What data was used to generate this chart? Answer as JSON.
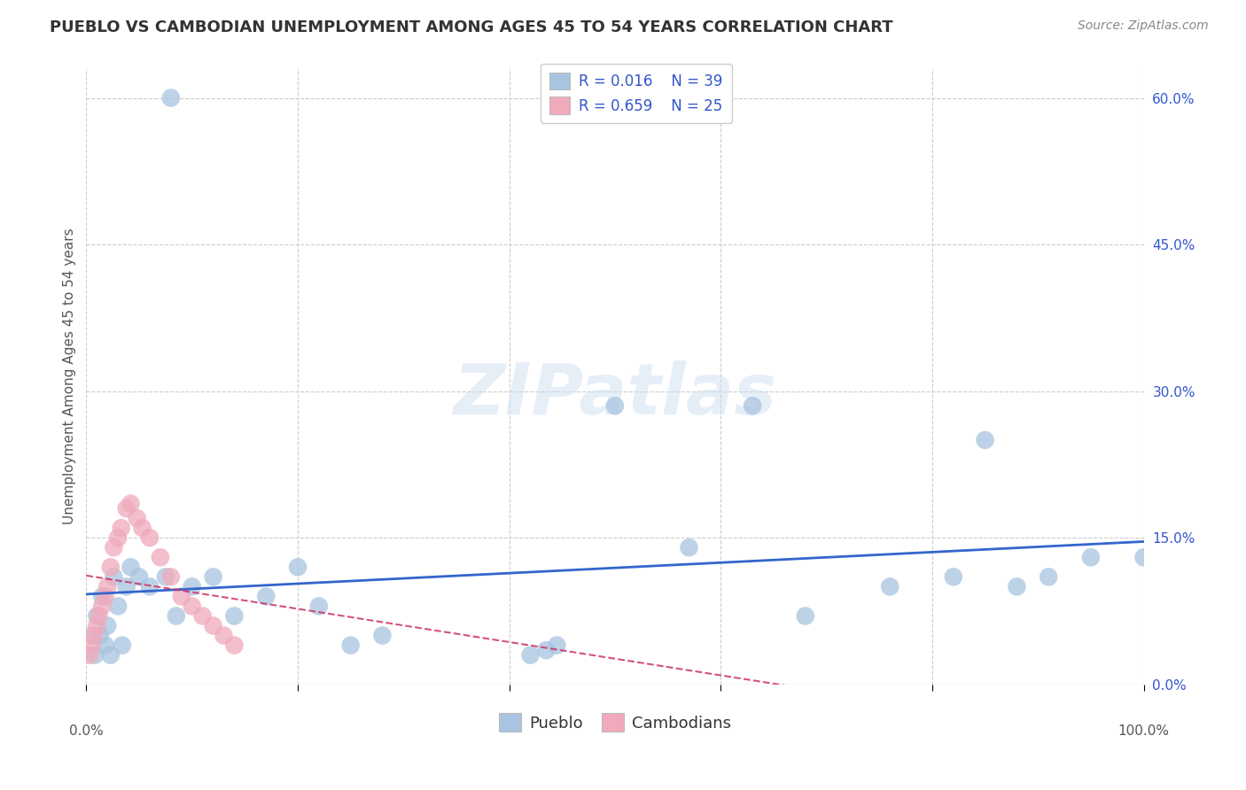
{
  "title": "PUEBLO VS CAMBODIAN UNEMPLOYMENT AMONG AGES 45 TO 54 YEARS CORRELATION CHART",
  "source": "Source: ZipAtlas.com",
  "ylabel": "Unemployment Among Ages 45 to 54 years",
  "xlim": [
    0,
    100
  ],
  "ylim": [
    0,
    63
  ],
  "xticks": [
    0,
    20,
    40,
    60,
    80,
    100
  ],
  "xticklabels_show": [
    "0.0%",
    "100.0%"
  ],
  "xticklabels_show_pos": [
    0,
    100
  ],
  "yticks": [
    0,
    15,
    30,
    45,
    60
  ],
  "yticklabels": [
    "0.0%",
    "15.0%",
    "30.0%",
    "45.0%",
    "60.0%"
  ],
  "background_color": "#ffffff",
  "grid_color": "#cccccc",
  "pueblo_color": "#a8c4e0",
  "cambodian_color": "#f0aabb",
  "pueblo_line_color": "#3366cc",
  "cambodian_line_color": "#cc3366",
  "pueblo_R": 0.016,
  "pueblo_N": 39,
  "cambodian_R": 0.659,
  "cambodian_N": 25,
  "watermark": "ZIPatlas",
  "legend_r_color": "#3355cc",
  "legend_n_color": "#cc3300",
  "legend_fontsize": 12,
  "title_fontsize": 13,
  "axis_label_fontsize": 11,
  "tick_fontsize": 11,
  "pueblo_x": [
    0.5,
    0.8,
    1.0,
    1.3,
    1.5,
    1.8,
    2.0,
    2.3,
    2.6,
    3.0,
    3.4,
    3.8,
    4.2,
    5.0,
    6.0,
    7.5,
    8.5,
    10.0,
    12.0,
    14.0,
    17.0,
    20.0,
    22.0,
    25.0,
    28.0,
    42.0,
    43.5,
    44.5,
    50.0,
    57.0,
    63.0,
    68.0,
    76.0,
    82.0,
    85.0,
    88.0,
    91.0,
    95.0,
    100.0
  ],
  "pueblo_y": [
    5.0,
    3.0,
    7.0,
    5.0,
    9.0,
    4.0,
    6.0,
    3.0,
    11.0,
    8.0,
    4.0,
    10.0,
    12.0,
    11.0,
    10.0,
    11.0,
    7.0,
    10.0,
    11.0,
    7.0,
    9.0,
    12.0,
    8.0,
    4.0,
    5.0,
    3.0,
    3.5,
    4.0,
    28.5,
    14.0,
    28.5,
    7.0,
    10.0,
    11.0,
    25.0,
    10.0,
    11.0,
    13.0,
    13.0
  ],
  "pueblo_outlier_x": [
    8.0
  ],
  "pueblo_outlier_y": [
    60.0
  ],
  "cambodian_x": [
    0.3,
    0.5,
    0.7,
    1.0,
    1.2,
    1.5,
    1.8,
    2.0,
    2.3,
    2.6,
    3.0,
    3.3,
    3.8,
    4.2,
    4.8,
    5.3,
    6.0,
    7.0,
    8.0,
    9.0,
    10.0,
    11.0,
    12.0,
    13.0,
    14.0
  ],
  "cambodian_y": [
    3.0,
    4.0,
    5.0,
    6.0,
    7.0,
    8.0,
    9.0,
    10.0,
    12.0,
    14.0,
    15.0,
    16.0,
    18.0,
    18.5,
    17.0,
    16.0,
    15.0,
    13.0,
    11.0,
    9.0,
    8.0,
    7.0,
    6.0,
    5.0,
    4.0
  ]
}
